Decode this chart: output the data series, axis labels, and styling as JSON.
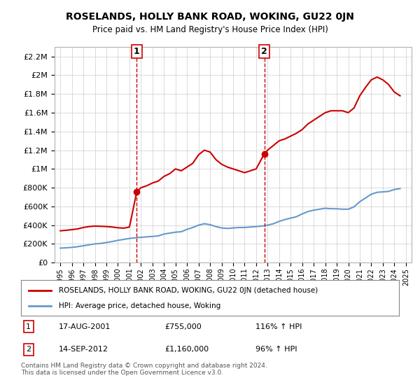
{
  "title": "ROSELANDS, HOLLY BANK ROAD, WOKING, GU22 0JN",
  "subtitle": "Price paid vs. HM Land Registry's House Price Index (HPI)",
  "legend_line1": "ROSELANDS, HOLLY BANK ROAD, WOKING, GU22 0JN (detached house)",
  "legend_line2": "HPI: Average price, detached house, Woking",
  "annotation1_label": "1",
  "annotation1_date": "17-AUG-2001",
  "annotation1_price": "£755,000",
  "annotation1_hpi": "116% ↑ HPI",
  "annotation1_year": 2001.63,
  "annotation2_label": "2",
  "annotation2_date": "14-SEP-2012",
  "annotation2_price": "£1,160,000",
  "annotation2_hpi": "96% ↑ HPI",
  "annotation2_year": 2012.71,
  "footnote": "Contains HM Land Registry data © Crown copyright and database right 2024.\nThis data is licensed under the Open Government Licence v3.0.",
  "red_color": "#cc0000",
  "blue_color": "#6699cc",
  "marker1_color": "#cc0000",
  "background_color": "#ffffff",
  "grid_color": "#cccccc",
  "ylim": [
    0,
    2300000
  ],
  "xlim": [
    1994.5,
    2025.5
  ],
  "sale1_x": 2001.63,
  "sale1_y": 755000,
  "sale2_x": 2012.71,
  "sale2_y": 1160000,
  "red_x": [
    1995.0,
    1995.5,
    1996.0,
    1996.5,
    1997.0,
    1997.5,
    1998.0,
    1998.5,
    1999.0,
    1999.5,
    2000.0,
    2000.5,
    2001.0,
    2001.63,
    2002.0,
    2002.5,
    2003.0,
    2003.5,
    2004.0,
    2004.5,
    2005.0,
    2005.5,
    2006.0,
    2006.5,
    2007.0,
    2007.5,
    2008.0,
    2008.5,
    2009.0,
    2009.5,
    2010.0,
    2010.5,
    2011.0,
    2011.5,
    2012.0,
    2012.71,
    2013.0,
    2013.5,
    2014.0,
    2014.5,
    2015.0,
    2015.5,
    2016.0,
    2016.5,
    2017.0,
    2017.5,
    2018.0,
    2018.5,
    2019.0,
    2019.5,
    2020.0,
    2020.5,
    2021.0,
    2021.5,
    2022.0,
    2022.5,
    2023.0,
    2023.5,
    2024.0,
    2024.5
  ],
  "red_y": [
    340000,
    345000,
    352000,
    360000,
    375000,
    385000,
    390000,
    388000,
    385000,
    380000,
    372000,
    368000,
    380000,
    755000,
    800000,
    820000,
    850000,
    870000,
    920000,
    950000,
    1000000,
    980000,
    1020000,
    1060000,
    1150000,
    1200000,
    1180000,
    1100000,
    1050000,
    1020000,
    1000000,
    980000,
    960000,
    980000,
    1000000,
    1160000,
    1200000,
    1250000,
    1300000,
    1320000,
    1350000,
    1380000,
    1420000,
    1480000,
    1520000,
    1560000,
    1600000,
    1620000,
    1620000,
    1620000,
    1600000,
    1650000,
    1780000,
    1870000,
    1950000,
    1980000,
    1950000,
    1900000,
    1820000,
    1780000
  ],
  "blue_x": [
    1995.0,
    1995.5,
    1996.0,
    1996.5,
    1997.0,
    1997.5,
    1998.0,
    1998.5,
    1999.0,
    1999.5,
    2000.0,
    2000.5,
    2001.0,
    2001.5,
    2002.0,
    2002.5,
    2003.0,
    2003.5,
    2004.0,
    2004.5,
    2005.0,
    2005.5,
    2006.0,
    2006.5,
    2007.0,
    2007.5,
    2008.0,
    2008.5,
    2009.0,
    2009.5,
    2010.0,
    2010.5,
    2011.0,
    2011.5,
    2012.0,
    2012.5,
    2013.0,
    2013.5,
    2014.0,
    2014.5,
    2015.0,
    2015.5,
    2016.0,
    2016.5,
    2017.0,
    2017.5,
    2018.0,
    2018.5,
    2019.0,
    2019.5,
    2020.0,
    2020.5,
    2021.0,
    2021.5,
    2022.0,
    2022.5,
    2023.0,
    2023.5,
    2024.0,
    2024.5
  ],
  "blue_y": [
    155000,
    158000,
    163000,
    170000,
    180000,
    190000,
    200000,
    205000,
    215000,
    225000,
    238000,
    248000,
    258000,
    265000,
    270000,
    275000,
    280000,
    285000,
    305000,
    315000,
    325000,
    330000,
    355000,
    375000,
    400000,
    415000,
    405000,
    385000,
    370000,
    365000,
    370000,
    375000,
    375000,
    380000,
    385000,
    390000,
    400000,
    415000,
    440000,
    460000,
    475000,
    490000,
    520000,
    545000,
    560000,
    570000,
    580000,
    575000,
    575000,
    570000,
    570000,
    595000,
    650000,
    690000,
    730000,
    750000,
    755000,
    760000,
    780000,
    790000
  ]
}
